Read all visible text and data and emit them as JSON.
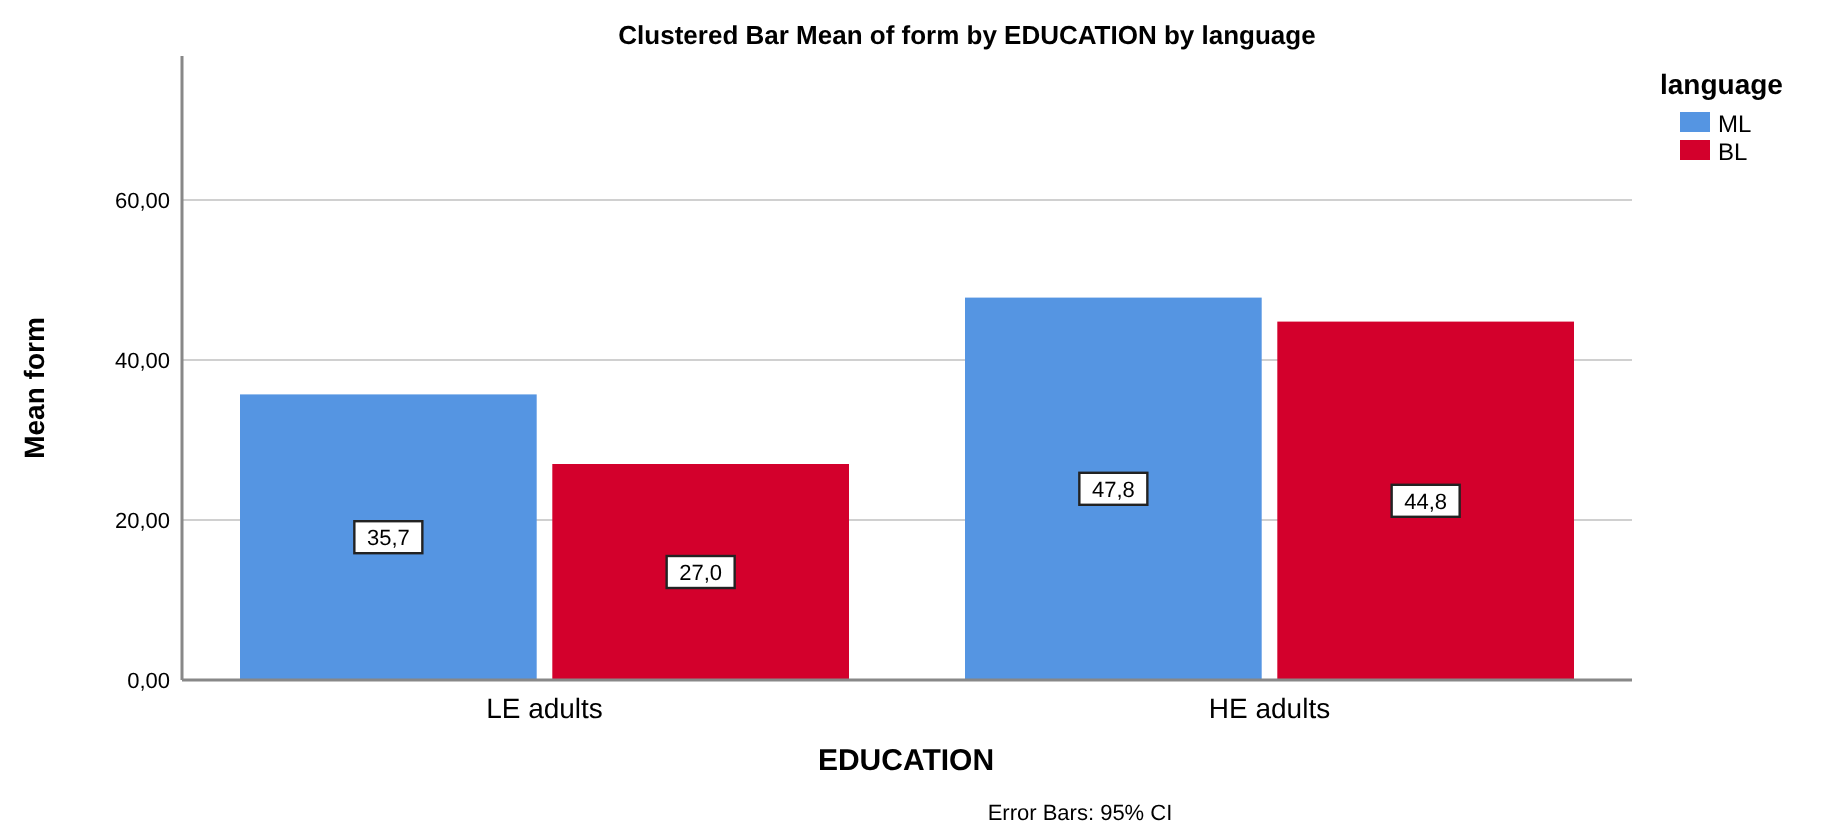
{
  "chart_data": {
    "type": "bar",
    "title": "Clustered Bar Mean of form by EDUCATION by language",
    "xlabel": "EDUCATION",
    "ylabel": "Mean form",
    "legend_title": "language",
    "categories": [
      "LE adults",
      "HE adults"
    ],
    "series": [
      {
        "name": "ML",
        "color": "#5595e2",
        "values": [
          35.7,
          47.8
        ],
        "value_labels": [
          "35,7",
          "47,8"
        ]
      },
      {
        "name": "BL",
        "color": "#d3002c",
        "values": [
          27.0,
          44.8
        ],
        "value_labels": [
          "27,0",
          "44,8"
        ]
      }
    ],
    "ylim": [
      0,
      78
    ],
    "yticks": [
      {
        "value": 0,
        "label": "0,00"
      },
      {
        "value": 20,
        "label": "20,00"
      },
      {
        "value": 40,
        "label": "40,00"
      },
      {
        "value": 60,
        "label": "60,00"
      }
    ],
    "grid": "y",
    "legend": "top right",
    "annotations": [
      "Error Bars: 95% CI"
    ]
  }
}
